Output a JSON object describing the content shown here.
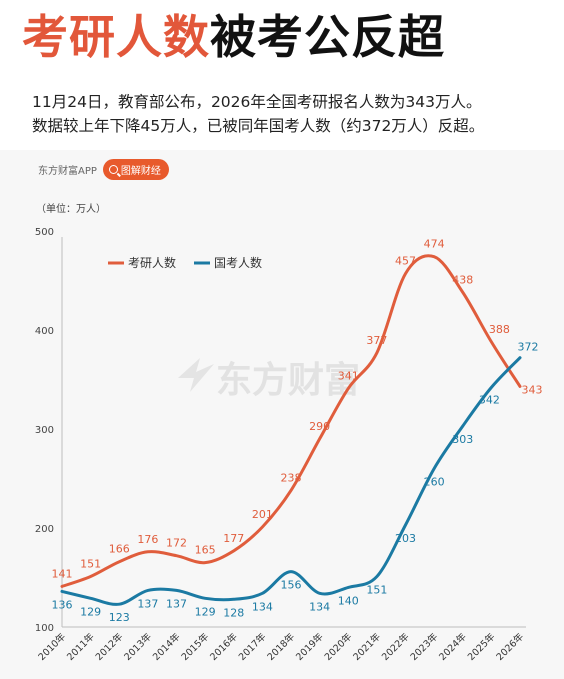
{
  "headline": {
    "part_red": "考研人数",
    "part_black": "被考公反超"
  },
  "subtitle": {
    "line1": "11月24日，教育部公布，2026年全国考研报名人数为343万人。",
    "line2": "数据较上年下降45万人，已被同年国考人数（约372万人）反超。"
  },
  "brand": {
    "app_name": "东方财富APP",
    "pill_label": "图解财经",
    "watermark": "东方财富"
  },
  "colors": {
    "kaoyan": "#e05d3c",
    "guokao": "#1b7aa3",
    "accent": "#e85a2c"
  },
  "chart_data": {
    "type": "line",
    "unit_label": "（单位：万人）",
    "categories": [
      "2010年",
      "2011年",
      "2012年",
      "2013年",
      "2014年",
      "2015年",
      "2016年",
      "2017年",
      "2018年",
      "2019年",
      "2020年",
      "2021年",
      "2022年",
      "2023年",
      "2024年",
      "2025年",
      "2026年"
    ],
    "series": [
      {
        "name": "考研人数",
        "values": [
          141,
          151,
          166,
          176,
          172,
          165,
          177,
          201,
          238,
          290,
          341,
          377,
          457,
          474,
          438,
          388,
          343
        ]
      },
      {
        "name": "国考人数",
        "values": [
          136,
          129,
          123,
          137,
          137,
          129,
          128,
          134,
          156,
          134,
          140,
          151,
          203,
          260,
          303,
          342,
          372
        ]
      }
    ],
    "ylim": [
      100,
      500
    ],
    "yticks": [
      100,
      200,
      300,
      400,
      500
    ],
    "grid": false,
    "legend_position": "top-left"
  }
}
